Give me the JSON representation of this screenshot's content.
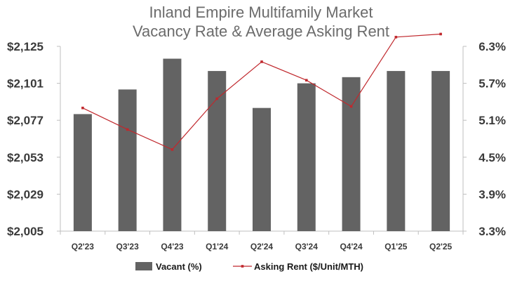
{
  "chart_data": {
    "type": "bar",
    "title_lines": [
      "Inland Empire Multifamily Market",
      "Vacancy Rate & Average Asking Rent"
    ],
    "categories": [
      "Q2'23",
      "Q3'23",
      "Q4'23",
      "Q1'24",
      "Q2'24",
      "Q3'24",
      "Q4'24",
      "Q1'25",
      "Q2'25"
    ],
    "left_axis": {
      "ylim": [
        2005,
        2125
      ],
      "tick_labels": [
        "$2,005",
        "$2,029",
        "$2,053",
        "$2,077",
        "$2,101",
        "$2,125"
      ]
    },
    "right_axis": {
      "ylim": [
        3.3,
        6.3
      ],
      "tick_labels": [
        "3.3%",
        "3.9%",
        "4.5%",
        "5.1%",
        "5.7%",
        "6.3%"
      ]
    },
    "series": [
      {
        "name": "Vacant (%)",
        "kind": "bar",
        "axis": "right",
        "color": "#636363",
        "values": [
          5.2,
          5.6,
          6.1,
          5.9,
          5.3,
          5.7,
          5.8,
          5.9,
          5.9
        ]
      },
      {
        "name": "Asking Rent ($/Unit/MTH)",
        "kind": "line",
        "axis": "left",
        "color": "#c0282d",
        "values": [
          2085,
          2071,
          2058,
          2091,
          2115,
          2103,
          2086,
          2131,
          2133
        ]
      }
    ],
    "grid": false,
    "legend_position": "bottom"
  }
}
